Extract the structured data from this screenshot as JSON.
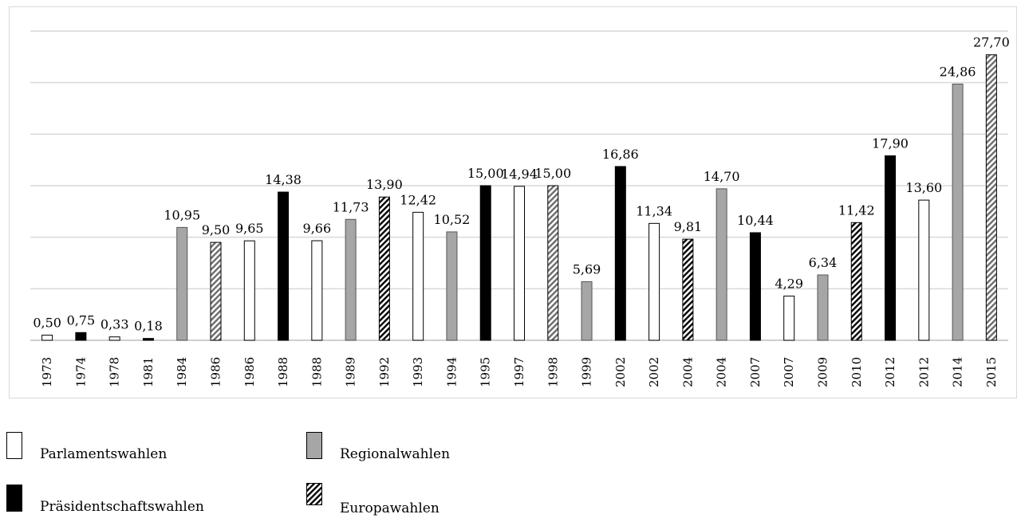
{
  "chart_data": {
    "type": "bar",
    "categories": [
      "1973",
      "1974",
      "1978",
      "1981",
      "1984",
      "1986",
      "1986",
      "1988",
      "1988",
      "1989",
      "1992",
      "1993",
      "1994",
      "1995",
      "1997",
      "1998",
      "1999",
      "2002",
      "2002",
      "2004",
      "2004",
      "2007",
      "2007",
      "2009",
      "2010",
      "2012",
      "2012",
      "2014",
      "2015"
    ],
    "values": [
      0.5,
      0.75,
      0.33,
      0.18,
      10.95,
      9.5,
      9.65,
      14.38,
      9.66,
      11.73,
      13.9,
      12.42,
      10.52,
      15.0,
      14.94,
      15.0,
      5.69,
      16.86,
      11.34,
      9.81,
      14.7,
      10.44,
      4.29,
      6.34,
      11.42,
      17.9,
      13.6,
      24.86,
      27.7
    ],
    "value_labels": [
      "0,50",
      "0,75",
      "0,33",
      "0,18",
      "10,95",
      "9,50",
      "9,65",
      "14,38",
      "9,66",
      "11,73",
      "13,90",
      "12,42",
      "10,52",
      "15,00",
      "14,94",
      "15,00",
      "5,69",
      "16,86",
      "11,34",
      "9,81",
      "14,70",
      "10,44",
      "4,29",
      "6,34",
      "11,42",
      "17,90",
      "13,60",
      "24,86",
      "27,70"
    ],
    "election_types": [
      "parl",
      "pres",
      "parl",
      "pres",
      "reg",
      "euro",
      "parl",
      "pres",
      "parl",
      "reg",
      "euro",
      "parl",
      "reg",
      "pres",
      "parl",
      "euro",
      "reg",
      "pres",
      "parl",
      "euro",
      "reg",
      "pres",
      "parl",
      "reg",
      "euro",
      "pres",
      "parl",
      "reg",
      "euro"
    ],
    "ylim": [
      0,
      30
    ],
    "grid": true,
    "legend_placement": "bottom-left",
    "legend": [
      {
        "key": "parl",
        "label": "Parlamentswahlen"
      },
      {
        "key": "reg",
        "label": "Regionalwahlen"
      },
      {
        "key": "pres",
        "label": "Präsidentschaftswahlen"
      },
      {
        "key": "euro",
        "label": "Europawahlen"
      }
    ],
    "colors": {
      "parl": "#ffffff",
      "reg": "#a6a6a6",
      "pres": "#000000",
      "euro": "hatch"
    }
  }
}
